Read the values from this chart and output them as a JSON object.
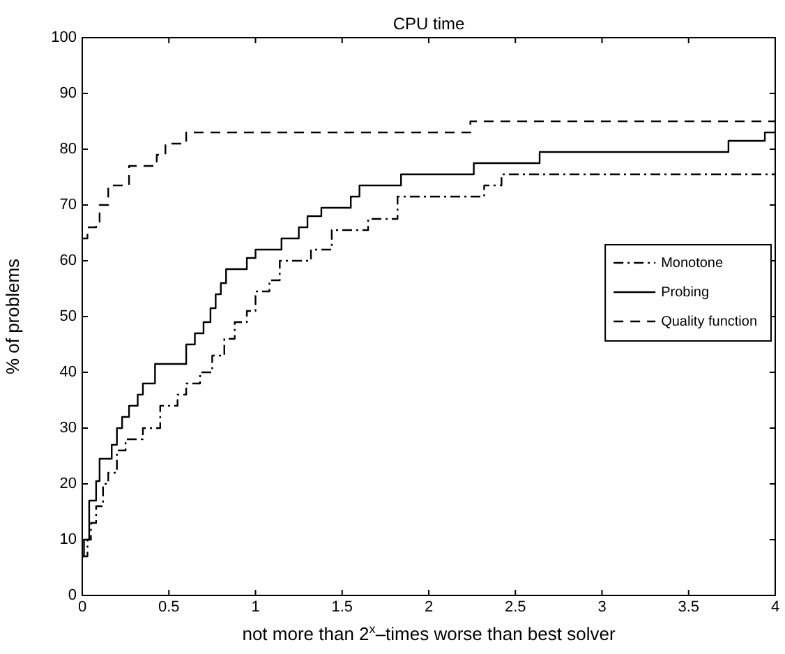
{
  "chart_data": {
    "type": "step",
    "title": "CPU time",
    "xlabel": "not more than 2$^{x}$–times worse than best solver",
    "ylabel": "% of problems",
    "xlim": [
      0,
      4
    ],
    "xticks": [
      0,
      0.5,
      1,
      1.5,
      2,
      2.5,
      3,
      3.5,
      4
    ],
    "ylim": [
      0,
      100
    ],
    "yticks": [
      0,
      10,
      20,
      30,
      40,
      50,
      60,
      70,
      80,
      90,
      100
    ],
    "grid": false,
    "legend": "right",
    "marker": "none",
    "series": [
      {
        "name": "Monotone",
        "color": "#000000",
        "line_style": "dashdot",
        "x": [
          0,
          0.03,
          0.05,
          0.08,
          0.12,
          0.15,
          0.2,
          0.25,
          0.35,
          0.45,
          0.55,
          0.6,
          0.68,
          0.75,
          0.82,
          0.88,
          0.95,
          1.0,
          1.08,
          1.14,
          1.32,
          1.44,
          1.65,
          1.82,
          2.32,
          2.42,
          4
        ],
        "values": [
          7,
          10,
          13,
          16,
          20,
          22,
          26,
          28,
          30,
          34,
          36,
          38,
          40,
          43,
          46,
          49,
          51,
          54.5,
          56.5,
          60,
          62,
          65.5,
          67.5,
          71.5,
          73.5,
          75.5,
          75.5
        ]
      },
      {
        "name": "Probing",
        "color": "#000000",
        "line_style": "solid",
        "x": [
          0,
          0.01,
          0.04,
          0.08,
          0.1,
          0.17,
          0.2,
          0.23,
          0.27,
          0.32,
          0.35,
          0.42,
          0.6,
          0.65,
          0.7,
          0.74,
          0.77,
          0.8,
          0.83,
          0.95,
          1.0,
          1.15,
          1.25,
          1.3,
          1.38,
          1.55,
          1.6,
          1.84,
          2.26,
          2.64,
          3.73,
          3.94,
          4
        ],
        "values": [
          7,
          10,
          17,
          20.5,
          24.5,
          27,
          30,
          32,
          34,
          36,
          38,
          41.5,
          45,
          47,
          49,
          51.5,
          54,
          56,
          58.5,
          60.5,
          62,
          64,
          66,
          68,
          69.5,
          71.5,
          73.5,
          75.5,
          77.5,
          79.5,
          81.5,
          83,
          83
        ]
      },
      {
        "name": "Quality function",
        "color": "#000000",
        "line_style": "dashed",
        "x": [
          0,
          0.03,
          0.08,
          0.1,
          0.15,
          0.27,
          0.43,
          0.48,
          0.6,
          2.24,
          4
        ],
        "values": [
          64,
          66,
          67,
          70,
          73.5,
          77,
          79,
          81,
          83,
          85,
          85
        ]
      }
    ]
  }
}
